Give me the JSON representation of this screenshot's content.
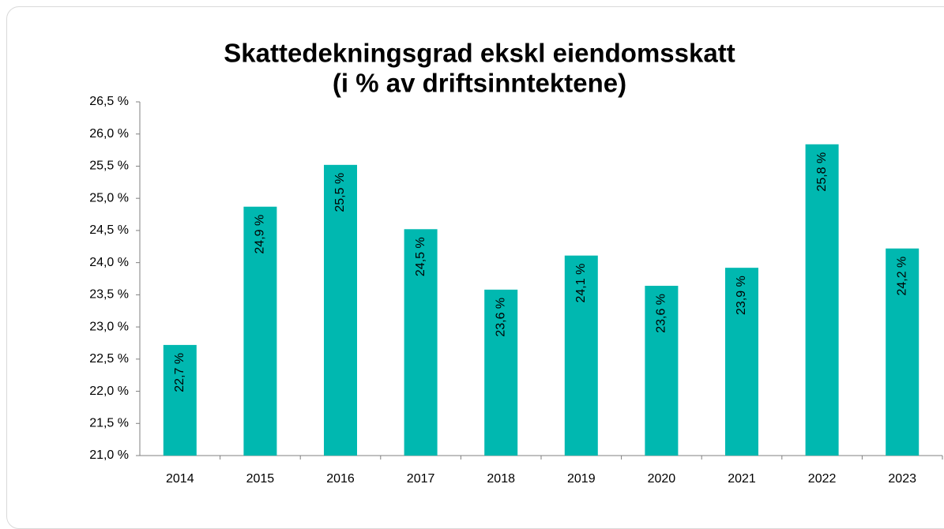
{
  "chart_data": {
    "type": "bar",
    "title": [
      "Skattedekningsgrad ekskl eiendomsskatt",
      "(i % av driftsinntektene)"
    ],
    "categories": [
      "2014",
      "2015",
      "2016",
      "2017",
      "2018",
      "2019",
      "2020",
      "2021",
      "2022",
      "2023"
    ],
    "values": [
      22.72,
      24.87,
      25.52,
      24.52,
      23.58,
      24.11,
      23.64,
      23.92,
      25.84,
      24.22
    ],
    "value_labels": [
      "22,7 %",
      "24,9 %",
      "25,5 %",
      "24,5 %",
      "23,6 %",
      "24,1 %",
      "23,6 %",
      "23,9 %",
      "25,8 %",
      "24,2 %"
    ],
    "color": "#00b8b0",
    "ylim": [
      21,
      26.5
    ],
    "yticks": [
      {
        "value": 21,
        "label": "21,0 %"
      },
      {
        "value": 21.5,
        "label": "21,5 %"
      },
      {
        "value": 22,
        "label": "22,0 %"
      },
      {
        "value": 22.5,
        "label": "22,5 %"
      },
      {
        "value": 23,
        "label": "23,0 %"
      },
      {
        "value": 23.5,
        "label": "23,5 %"
      },
      {
        "value": 24,
        "label": "24,0 %"
      },
      {
        "value": 24.5,
        "label": "24,5 %"
      },
      {
        "value": 25,
        "label": "25,0 %"
      },
      {
        "value": 25.5,
        "label": "25,5 %"
      },
      {
        "value": 26,
        "label": "26,0 %"
      },
      {
        "value": 26.5,
        "label": "26,5 %"
      }
    ],
    "grid": false
  }
}
